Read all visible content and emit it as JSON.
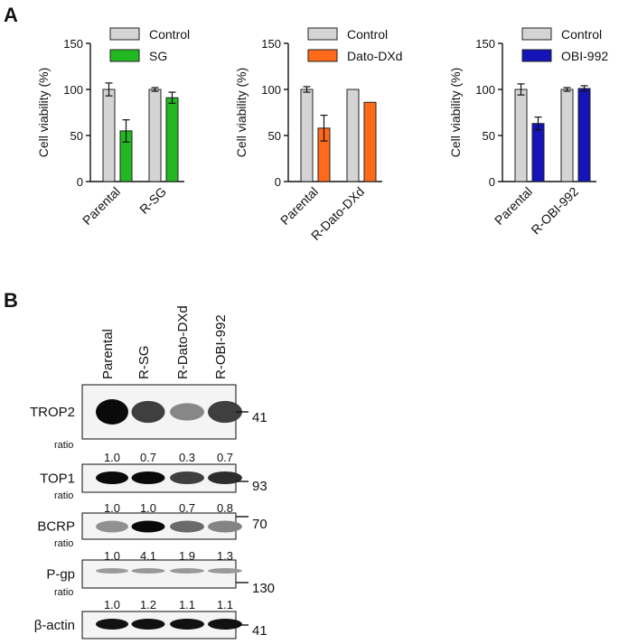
{
  "panel_a_label": "A",
  "panel_b_label": "B",
  "chart_data": [
    {
      "type": "bar",
      "categories": [
        "Parental",
        "R-SG"
      ],
      "series": [
        {
          "name": "Control",
          "color": "#d4d4d4",
          "values": [
            100,
            100
          ],
          "errors": [
            7,
            2
          ]
        },
        {
          "name": "SG",
          "color": "#22b822",
          "values": [
            55,
            91
          ],
          "errors": [
            12,
            6
          ]
        }
      ],
      "ylabel": "Cell viability (%)",
      "ylim": [
        0,
        150
      ],
      "yticks": [
        "0",
        "50",
        "100",
        "150"
      ],
      "legend": "top"
    },
    {
      "type": "bar",
      "categories": [
        "Parental",
        "R-Dato-DXd"
      ],
      "series": [
        {
          "name": "Control",
          "color": "#d4d4d4",
          "values": [
            100,
            100
          ],
          "errors": [
            3,
            0
          ]
        },
        {
          "name": "Dato-DXd",
          "color": "#ff6a1a",
          "values": [
            58,
            86
          ],
          "errors": [
            14,
            0
          ]
        }
      ],
      "ylabel": "Cell viability (%)",
      "ylim": [
        0,
        150
      ],
      "yticks": [
        "0",
        "50",
        "100",
        "150"
      ],
      "legend": "top"
    },
    {
      "type": "bar",
      "categories": [
        "Parental",
        "R-OBI-992"
      ],
      "series": [
        {
          "name": "Control",
          "color": "#d4d4d4",
          "values": [
            100,
            100
          ],
          "errors": [
            6,
            2
          ]
        },
        {
          "name": "OBI-992",
          "color": "#1414b8",
          "values": [
            63,
            101
          ],
          "errors": [
            7,
            3
          ]
        }
      ],
      "ylabel": "Cell viability (%)",
      "ylim": [
        0,
        150
      ],
      "yticks": [
        "0",
        "50",
        "100",
        "150"
      ],
      "legend": "top"
    }
  ],
  "western_blot": {
    "lanes": [
      "Parental",
      "R-SG",
      "R-Dato-DXd",
      "R-OBI-992"
    ],
    "ratio_label": "ratio",
    "blots": [
      {
        "name": "TROP2",
        "mw": "41",
        "ratios": [
          "1.0",
          "0.7",
          "0.3",
          "0.7"
        ],
        "levels": [
          1.0,
          0.7,
          0.3,
          0.7
        ]
      },
      {
        "name": "TOP1",
        "mw": "93",
        "ratios": [
          "1.0",
          "1.0",
          "0.7",
          "0.8"
        ],
        "levels": [
          1.0,
          1.0,
          0.7,
          0.8
        ]
      },
      {
        "name": "BCRP",
        "mw": "70",
        "ratios": [
          "1.0",
          "4.1",
          "1.9",
          "1.3"
        ],
        "levels": [
          1.0,
          4.1,
          1.9,
          1.3
        ]
      },
      {
        "name": "P-gp",
        "mw": "130",
        "ratios": [
          "1.0",
          "1.2",
          "1.1",
          "1.1"
        ],
        "levels": [
          1.0,
          1.2,
          1.1,
          1.1
        ]
      },
      {
        "name": "β-actin",
        "mw": "41",
        "ratios": [],
        "levels": [
          1.0,
          1.0,
          1.0,
          1.0
        ]
      }
    ]
  }
}
